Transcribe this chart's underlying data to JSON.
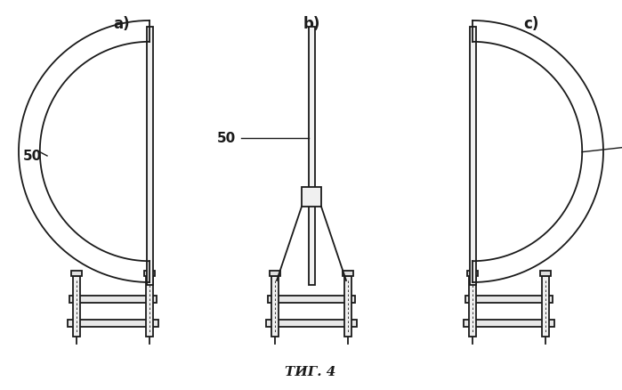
{
  "bg_color": "#ffffff",
  "line_color": "#1a1a1a",
  "caption": "ΤИГ. 4",
  "labels": [
    "a)",
    "b)",
    "c)"
  ],
  "label_50": "50",
  "fig_width": 6.99,
  "fig_height": 4.38,
  "dpi": 100
}
